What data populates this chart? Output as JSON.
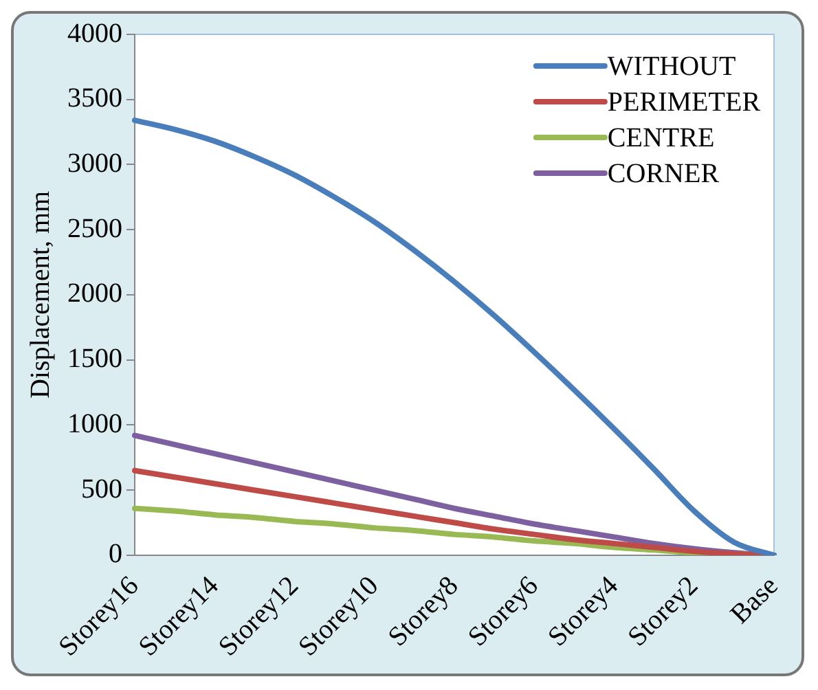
{
  "chart_data": {
    "type": "line",
    "ylabel": "Displacement, mm",
    "categories": [
      "Storey16",
      null,
      "Storey14",
      null,
      "Storey12",
      null,
      "Storey10",
      null,
      "Storey8",
      null,
      "Storey6",
      null,
      "Storey4",
      null,
      "Storey2",
      null,
      "Base"
    ],
    "series": [
      {
        "name": "WITHOUT",
        "color": "#4a7ebb",
        "values": [
          3340,
          3270,
          3180,
          3060,
          2920,
          2750,
          2560,
          2340,
          2100,
          1840,
          1560,
          1270,
          970,
          660,
          340,
          100,
          0
        ]
      },
      {
        "name": "PERIMETER",
        "color": "#be4b48",
        "values": [
          650,
          600,
          550,
          500,
          450,
          400,
          350,
          300,
          250,
          200,
          160,
          120,
          90,
          60,
          30,
          10,
          0
        ]
      },
      {
        "name": "CENTRE",
        "color": "#98b954",
        "values": [
          360,
          340,
          310,
          290,
          260,
          240,
          210,
          190,
          160,
          140,
          110,
          90,
          60,
          40,
          20,
          10,
          0
        ]
      },
      {
        "name": "CORNER",
        "color": "#7d60a0",
        "values": [
          920,
          850,
          780,
          710,
          640,
          570,
          500,
          430,
          360,
          300,
          240,
          190,
          140,
          90,
          50,
          20,
          0
        ]
      }
    ],
    "ylim": [
      0,
      4000
    ],
    "yticks": [
      0,
      500,
      1000,
      1500,
      2000,
      2500,
      3000,
      3500,
      4000
    ],
    "grid": false,
    "legend": "top right",
    "marker": "none",
    "line_style": "solid"
  }
}
